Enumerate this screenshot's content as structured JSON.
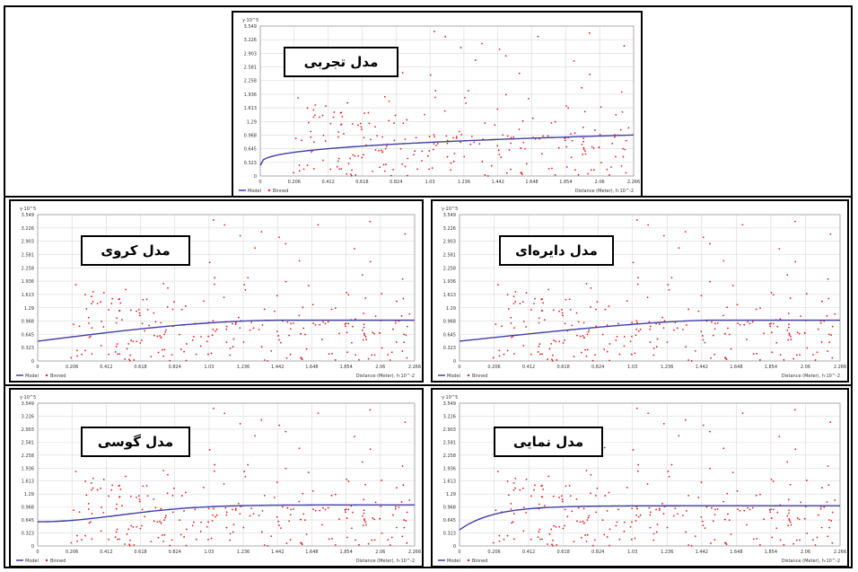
{
  "colors": {
    "model_line": "#3f3fa3",
    "binned_points": "#e41a1c",
    "grid": "#d9d9d9",
    "frame": "#000000"
  },
  "chart_data": [
    {
      "type": "scatter",
      "title": "مدل تجربی",
      "ylabel": "γ·10^5",
      "xlabel": "Distance (Meter), h·10^-2",
      "xlim": [
        0,
        2.266
      ],
      "ylim": [
        0,
        3.549
      ],
      "x_ticks": [
        "0",
        "0.206",
        "0.412",
        "0.618",
        "0.824",
        "1.03",
        "1.236",
        "1.442",
        "1.648",
        "1.854",
        "2.06",
        "2.266"
      ],
      "y_ticks": [
        "0.323",
        "0.645",
        "0.968",
        "1.29",
        "1.613",
        "1.936",
        "2.258",
        "2.581",
        "2.903",
        "3.226",
        "3.549"
      ],
      "legend": [
        "Model",
        "Binned"
      ],
      "series": [
        {
          "name": "Model",
          "shape": "power",
          "nugget": 0.25,
          "sill": 0.97
        },
        {
          "name": "Binned",
          "points": "scatter of binned semivariance values between 0 and 3.55"
        }
      ]
    },
    {
      "type": "scatter",
      "title": "مدل کروی",
      "ylabel": "γ·10^5",
      "xlabel": "Distance (Meter), h·10^-2",
      "xlim": [
        0,
        2.266
      ],
      "ylim": [
        0,
        3.549
      ],
      "x_ticks": [
        "0",
        "0.206",
        "0.412",
        "0.618",
        "0.824",
        "1.03",
        "1.236",
        "1.442",
        "1.648",
        "1.854",
        "2.06",
        "2.266"
      ],
      "y_ticks": [
        "0.323",
        "0.645",
        "0.968",
        "1.29",
        "1.613",
        "1.936",
        "2.258",
        "2.581",
        "2.903",
        "3.226",
        "3.549"
      ],
      "legend": [
        "Model",
        "Binned"
      ],
      "series": [
        {
          "name": "Model",
          "shape": "spherical",
          "nugget": 0.48,
          "sill": 0.99,
          "range": 1.5
        },
        {
          "name": "Binned",
          "points": "scatter of binned semivariance values between 0 and 3.55"
        }
      ]
    },
    {
      "type": "scatter",
      "title": "مدل دایره‌ای",
      "ylabel": "γ·10^5",
      "xlabel": "Distance (Meter), h·10^-2",
      "xlim": [
        0,
        2.266
      ],
      "ylim": [
        0,
        3.549
      ],
      "x_ticks": [
        "0",
        "0.206",
        "0.412",
        "0.618",
        "0.824",
        "1.03",
        "1.236",
        "1.442",
        "1.648",
        "1.854",
        "2.06",
        "2.266"
      ],
      "y_ticks": [
        "0.323",
        "0.645",
        "0.968",
        "1.29",
        "1.613",
        "1.936",
        "2.258",
        "2.581",
        "2.903",
        "3.226",
        "3.549"
      ],
      "legend": [
        "Model",
        "Binned"
      ],
      "series": [
        {
          "name": "Model",
          "shape": "circular",
          "nugget": 0.48,
          "sill": 0.99,
          "range": 1.5
        },
        {
          "name": "Binned",
          "points": "scatter of binned semivariance values between 0 and 3.55"
        }
      ]
    },
    {
      "type": "scatter",
      "title": "مدل گوسی",
      "ylabel": "γ·10^5",
      "xlabel": "Distance (Meter), h·10^-2",
      "xlim": [
        0,
        2.266
      ],
      "ylim": [
        0,
        3.549
      ],
      "x_ticks": [
        "0",
        "0.206",
        "0.412",
        "0.618",
        "0.824",
        "1.03",
        "1.236",
        "1.442",
        "1.648",
        "1.854",
        "2.06",
        "2.266"
      ],
      "y_ticks": [
        "0.323",
        "0.645",
        "0.968",
        "1.29",
        "1.613",
        "1.936",
        "2.258",
        "2.581",
        "2.903",
        "3.226",
        "3.549"
      ],
      "legend": [
        "Model",
        "Binned"
      ],
      "series": [
        {
          "name": "Model",
          "shape": "gaussian",
          "nugget": 0.6,
          "sill": 1.02,
          "range": 1.2
        },
        {
          "name": "Binned",
          "points": "scatter of binned semivariance values between 0 and 3.55"
        }
      ]
    },
    {
      "type": "scatter",
      "title": "مدل نمایی",
      "ylabel": "γ·10^5",
      "xlabel": "Distance (Meter), h·10^-2",
      "xlim": [
        0,
        2.266
      ],
      "ylim": [
        0,
        3.549
      ],
      "x_ticks": [
        "0",
        "0.206",
        "0.412",
        "0.618",
        "0.824",
        "1.03",
        "1.236",
        "1.442",
        "1.648",
        "1.854",
        "2.06",
        "2.266"
      ],
      "y_ticks": [
        "0.323",
        "0.645",
        "0.968",
        "1.29",
        "1.613",
        "1.936",
        "2.258",
        "2.581",
        "2.903",
        "3.226",
        "3.549"
      ],
      "legend": [
        "Model",
        "Binned"
      ],
      "series": [
        {
          "name": "Model",
          "shape": "exponential",
          "nugget": 0.4,
          "sill": 1.0,
          "range": 0.6
        },
        {
          "name": "Binned",
          "points": "scatter of binned semivariance values between 0 and 3.55"
        }
      ]
    }
  ]
}
